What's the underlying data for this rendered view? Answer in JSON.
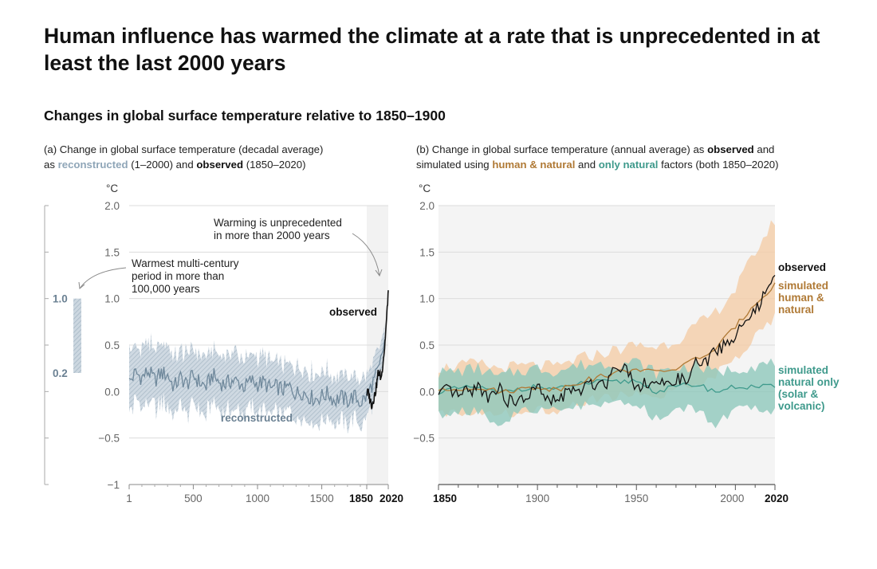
{
  "title": "Human influence has warmed the climate at a rate that is unprecedented in at least the last 2000 years",
  "subtitle": "Changes in global surface temperature relative to 1850–1900",
  "colors": {
    "reconstructed": "#8fa6b8",
    "observed": "#111111",
    "human_natural": "#b07a36",
    "human_natural_band": "#f4cda8",
    "natural_only": "#3f9a8c",
    "natural_only_band": "#8ec8bb",
    "panel_shade": "#f2f2f2"
  },
  "panel_a": {
    "desc_line1": "(a) Change in global surface temperature (decadal average)",
    "desc_as": "as",
    "desc_reconstructed": "reconstructed",
    "desc_mid": "(1–2000) and",
    "desc_observed": "observed",
    "desc_end": "(1850–2020)",
    "unit": "°C",
    "annotation_warming": [
      "Warming is unprecedented",
      "in more than 2000 years"
    ],
    "annotation_warmest": [
      "Warmest multi-century",
      "period in more than",
      "100,000 years"
    ],
    "label_observed": "observed",
    "label_reconstructed": "reconstructed",
    "side_bar_labels": [
      "1.0",
      "0.2"
    ]
  },
  "panel_b": {
    "desc_part1": "(b) Change in global surface temperature (annual average) as",
    "desc_observed": "observed",
    "desc_and": "and",
    "desc_part2": "simulated using",
    "desc_human": "human & natural",
    "desc_and2": "and",
    "desc_natural": "only natural",
    "desc_end": "factors (both 1850–2020)",
    "unit": "°C",
    "label_observed": "observed",
    "label_human": [
      "simulated",
      "human &",
      "natural"
    ],
    "label_natural": [
      "simulated",
      "natural only",
      "(solar &",
      "volcanic)"
    ]
  },
  "chart_data": [
    {
      "type": "line",
      "title": "(a) Change in global surface temperature (decadal average)",
      "xlabel": "",
      "ylabel": "°C",
      "xlim": [
        1,
        2020
      ],
      "ylim": [
        -1,
        2
      ],
      "x_ticks": [
        1,
        500,
        1000,
        1500,
        1850,
        2020
      ],
      "y_ticks": [
        -1,
        -0.5,
        0,
        0.5,
        1.0,
        1.5,
        2.0
      ],
      "y_tick_labels": [
        "−1",
        "−0.5",
        "0.0",
        "0.5",
        "1.0",
        "1.5",
        "2.0"
      ],
      "shaded_region": [
        1850,
        2020
      ],
      "side_range": [
        0.2,
        1.0
      ],
      "series": [
        {
          "name": "reconstructed",
          "x": [
            1,
            50,
            100,
            150,
            200,
            250,
            300,
            350,
            400,
            450,
            500,
            550,
            600,
            650,
            700,
            750,
            800,
            850,
            900,
            950,
            1000,
            1050,
            1100,
            1150,
            1200,
            1250,
            1300,
            1350,
            1400,
            1450,
            1500,
            1550,
            1600,
            1650,
            1700,
            1750,
            1800,
            1850,
            1900,
            1950,
            2000
          ],
          "values": [
            0.1,
            0.2,
            0.15,
            0.22,
            0.12,
            0.2,
            0.18,
            0.05,
            0.15,
            0.08,
            0.17,
            0.1,
            0.05,
            0.18,
            0.1,
            0.08,
            0.12,
            0.1,
            0.05,
            0.12,
            0.08,
            0.1,
            0.03,
            0.05,
            0.02,
            0.05,
            -0.02,
            0.0,
            -0.05,
            -0.08,
            -0.05,
            -0.02,
            -0.1,
            -0.06,
            -0.1,
            -0.05,
            -0.12,
            -0.05,
            0.1,
            0.25,
            0.6
          ],
          "band": [
            0.35,
            0.35,
            0.35,
            0.35,
            0.35,
            0.35,
            0.35,
            0.35,
            0.35,
            0.35,
            0.33,
            0.33,
            0.33,
            0.33,
            0.33,
            0.32,
            0.32,
            0.32,
            0.32,
            0.3,
            0.3,
            0.3,
            0.3,
            0.3,
            0.3,
            0.3,
            0.3,
            0.3,
            0.3,
            0.3,
            0.3,
            0.28,
            0.28,
            0.28,
            0.28,
            0.26,
            0.26,
            0.25,
            0.22,
            0.2,
            0.18
          ]
        },
        {
          "name": "observed",
          "x": [
            1850,
            1860,
            1870,
            1880,
            1890,
            1900,
            1910,
            1920,
            1930,
            1940,
            1950,
            1960,
            1970,
            1980,
            1990,
            2000,
            2010,
            2020
          ],
          "values": [
            -0.02,
            0.0,
            -0.05,
            -0.1,
            -0.15,
            -0.1,
            -0.05,
            0.0,
            0.1,
            0.2,
            0.2,
            0.15,
            0.2,
            0.35,
            0.45,
            0.65,
            0.85,
            1.09
          ]
        }
      ]
    },
    {
      "type": "line",
      "title": "(b) Change in global surface temperature (annual average)",
      "xlabel": "",
      "ylabel": "°C",
      "xlim": [
        1850,
        2020
      ],
      "ylim": [
        -1,
        2
      ],
      "x_ticks": [
        1850,
        1900,
        1950,
        2000,
        2020
      ],
      "y_ticks": [
        -0.5,
        0.0,
        0.5,
        1.0,
        1.5,
        2.0
      ],
      "y_tick_labels": [
        "−0.5",
        "0.0",
        "0.5",
        "1.0",
        "1.5",
        "2.0"
      ],
      "series": [
        {
          "name": "observed",
          "x": [
            1850,
            1855,
            1860,
            1865,
            1870,
            1875,
            1880,
            1885,
            1890,
            1895,
            1900,
            1905,
            1910,
            1915,
            1920,
            1925,
            1930,
            1935,
            1940,
            1945,
            1950,
            1955,
            1960,
            1965,
            1970,
            1975,
            1980,
            1985,
            1990,
            1995,
            2000,
            2005,
            2010,
            2015,
            2020
          ],
          "values": [
            -0.05,
            0.02,
            -0.05,
            0.0,
            0.05,
            -0.05,
            0.05,
            -0.1,
            -0.12,
            -0.05,
            0.05,
            -0.1,
            -0.1,
            0.0,
            0.0,
            0.05,
            0.1,
            0.1,
            0.3,
            0.25,
            0.05,
            0.1,
            0.1,
            0.05,
            0.15,
            0.1,
            0.3,
            0.3,
            0.45,
            0.5,
            0.6,
            0.75,
            0.85,
            1.05,
            1.2
          ]
        },
        {
          "name": "simulated human & natural",
          "x": [
            1850,
            1860,
            1870,
            1880,
            1890,
            1900,
            1910,
            1920,
            1930,
            1940,
            1950,
            1960,
            1970,
            1980,
            1990,
            2000,
            2010,
            2020
          ],
          "values": [
            0.0,
            0.03,
            0.05,
            0.0,
            0.02,
            0.05,
            0.02,
            0.1,
            0.15,
            0.2,
            0.25,
            0.2,
            0.25,
            0.35,
            0.45,
            0.7,
            0.95,
            1.15
          ],
          "band_low": [
            -0.25,
            -0.22,
            -0.2,
            -0.25,
            -0.22,
            -0.18,
            -0.2,
            -0.12,
            -0.08,
            -0.05,
            0.0,
            -0.08,
            0.0,
            0.1,
            0.18,
            0.35,
            0.6,
            0.8
          ],
          "band_high": [
            0.25,
            0.28,
            0.3,
            0.25,
            0.27,
            0.28,
            0.26,
            0.35,
            0.4,
            0.45,
            0.5,
            0.48,
            0.55,
            0.7,
            0.85,
            1.1,
            1.5,
            1.85
          ]
        },
        {
          "name": "simulated natural only (solar & volcanic)",
          "x": [
            1850,
            1860,
            1870,
            1880,
            1890,
            1900,
            1910,
            1920,
            1930,
            1940,
            1950,
            1960,
            1970,
            1980,
            1990,
            2000,
            2010,
            2020
          ],
          "values": [
            0.0,
            0.03,
            0.05,
            -0.02,
            0.03,
            0.05,
            0.02,
            0.08,
            0.1,
            0.1,
            0.12,
            0.0,
            0.05,
            0.08,
            0.0,
            0.05,
            0.05,
            0.05
          ],
          "band_low": [
            -0.25,
            -0.22,
            -0.2,
            -0.35,
            -0.22,
            -0.2,
            -0.22,
            -0.15,
            -0.15,
            -0.15,
            -0.12,
            -0.3,
            -0.2,
            -0.18,
            -0.35,
            -0.2,
            -0.2,
            -0.2
          ],
          "band_high": [
            0.2,
            0.22,
            0.25,
            0.15,
            0.22,
            0.25,
            0.22,
            0.28,
            0.3,
            0.3,
            0.32,
            0.2,
            0.25,
            0.28,
            0.2,
            0.25,
            0.28,
            0.3
          ]
        }
      ]
    }
  ]
}
